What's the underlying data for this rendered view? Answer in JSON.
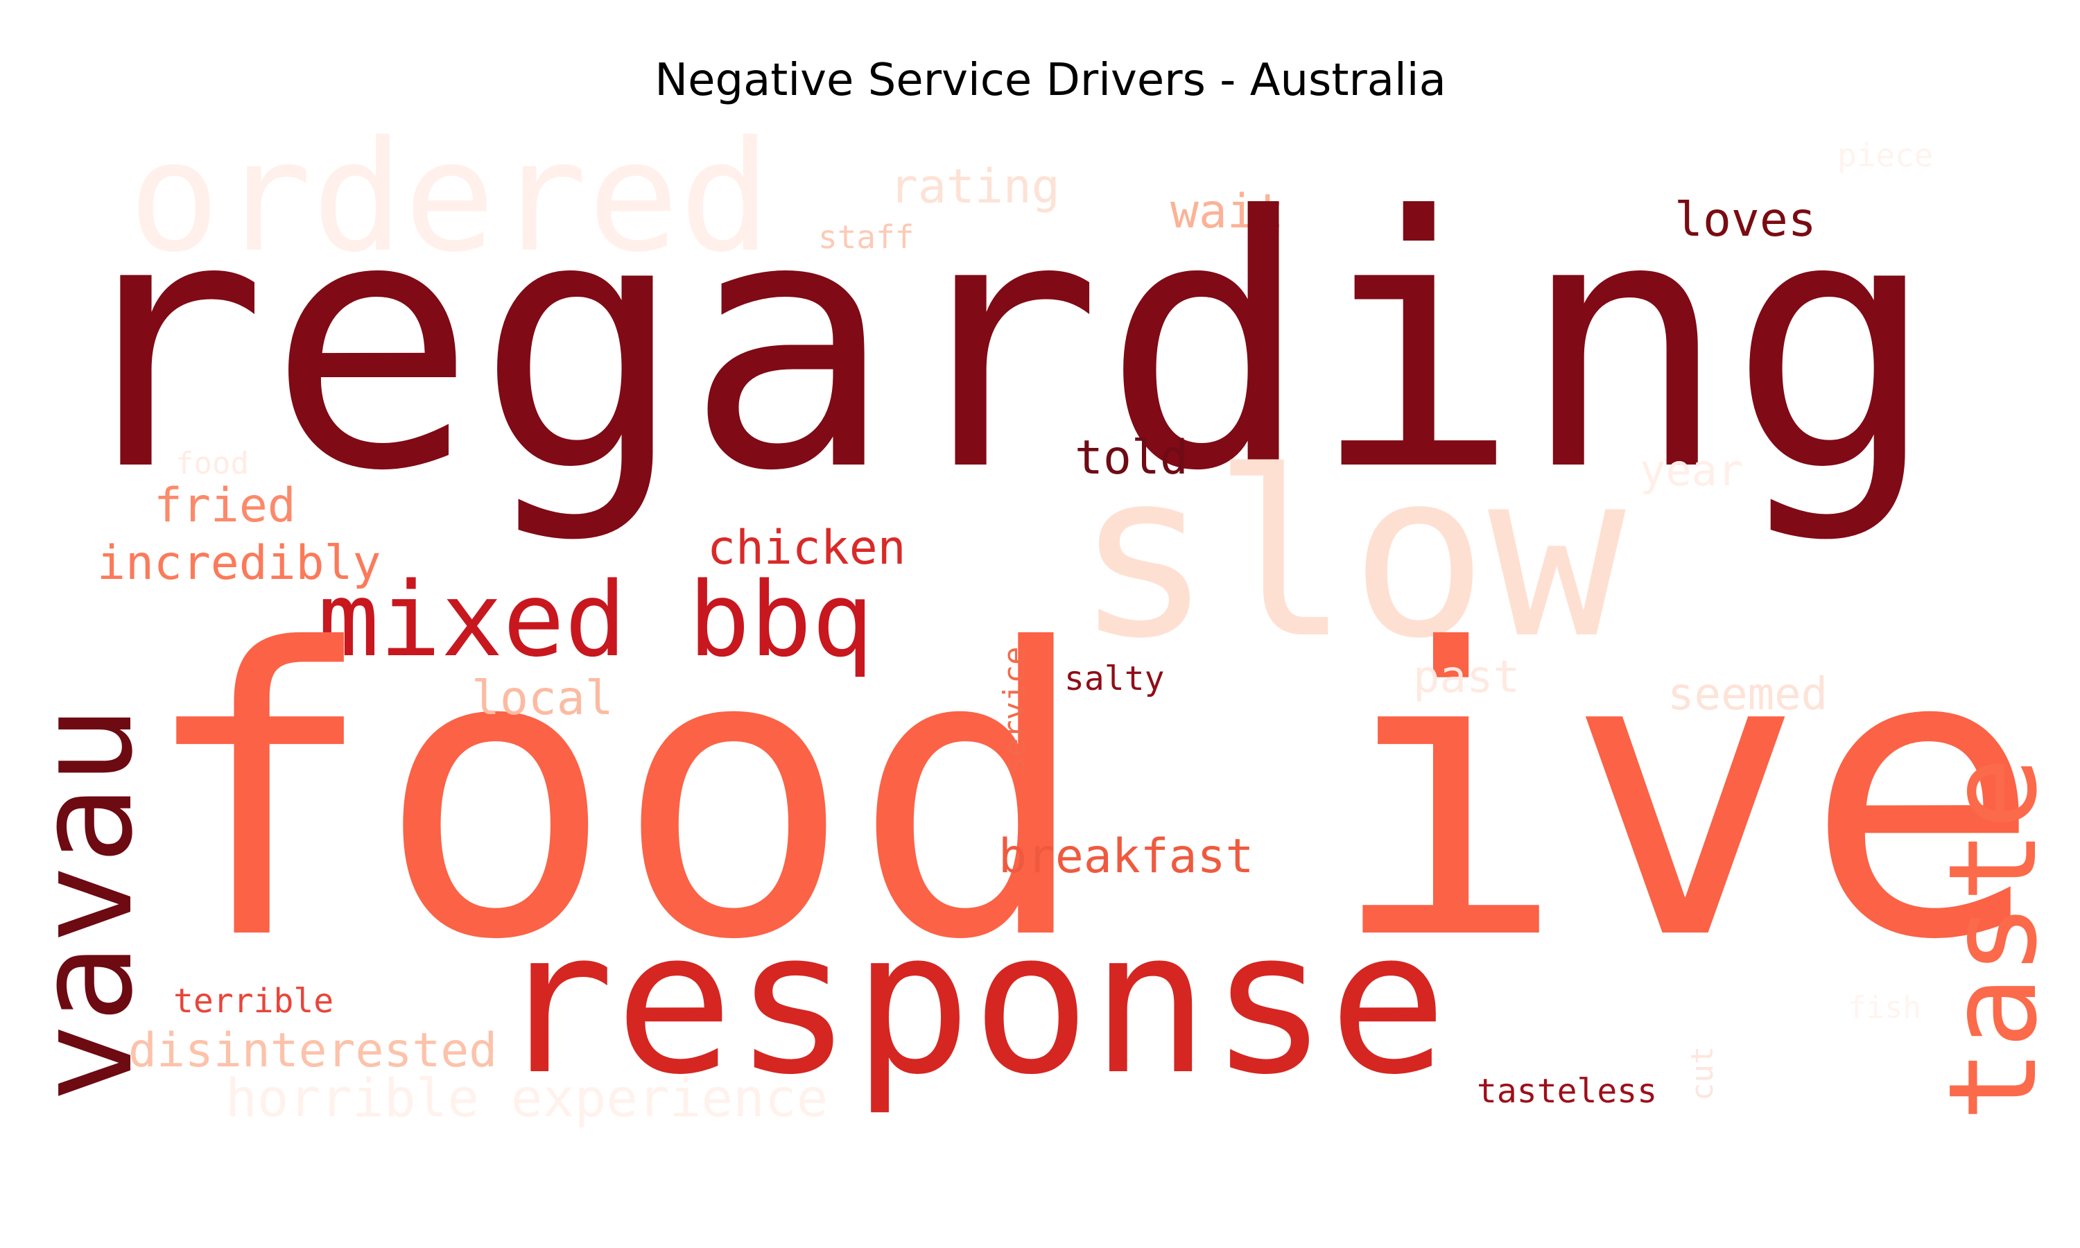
{
  "chart_data": {
    "type": "wordcloud",
    "title": "Negative Service Drivers - Australia",
    "colormap": "Reds",
    "words": [
      {
        "text": "ordered",
        "weight": 0.2,
        "color": "#fff0eb",
        "orientation": "horizontal"
      },
      {
        "text": "rating",
        "weight": 0.1,
        "color": "#fde2d6",
        "orientation": "horizontal"
      },
      {
        "text": "piece",
        "weight": 0.05,
        "color": "#fff3ee",
        "orientation": "horizontal"
      },
      {
        "text": "staff",
        "weight": 0.05,
        "color": "#fdcab5",
        "orientation": "horizontal"
      },
      {
        "text": "wait",
        "weight": 0.08,
        "color": "#fcb296",
        "orientation": "horizontal"
      },
      {
        "text": "loves",
        "weight": 0.08,
        "color": "#7a0b12",
        "orientation": "horizontal"
      },
      {
        "text": "regarding",
        "weight": 1.0,
        "color": "#800a15",
        "orientation": "horizontal"
      },
      {
        "text": "slow",
        "weight": 0.45,
        "color": "#fee0d2",
        "orientation": "horizontal"
      },
      {
        "text": "told",
        "weight": 0.08,
        "color": "#6e0b15",
        "orientation": "horizontal"
      },
      {
        "text": "food",
        "weight": 0.05,
        "color": "#ffece5",
        "orientation": "horizontal"
      },
      {
        "text": "year",
        "weight": 0.06,
        "color": "#ffefe8",
        "orientation": "horizontal"
      },
      {
        "text": "fried",
        "weight": 0.07,
        "color": "#fb8a6a",
        "orientation": "horizontal"
      },
      {
        "text": "incredibly",
        "weight": 0.08,
        "color": "#fb7a5a",
        "orientation": "horizontal"
      },
      {
        "text": "chicken",
        "weight": 0.08,
        "color": "#d92a28",
        "orientation": "horizontal"
      },
      {
        "text": "mixed bbq",
        "weight": 0.28,
        "color": "#c8171e",
        "orientation": "horizontal"
      },
      {
        "text": "vavau",
        "weight": 0.45,
        "color": "#6d0a12",
        "orientation": "vertical"
      },
      {
        "text": "food ive",
        "weight": 0.95,
        "color": "#fb6246",
        "orientation": "horizontal"
      },
      {
        "text": "salty",
        "weight": 0.05,
        "color": "#8f0d17",
        "orientation": "horizontal"
      },
      {
        "text": "past",
        "weight": 0.07,
        "color": "#feeae2",
        "orientation": "horizontal"
      },
      {
        "text": "seemed",
        "weight": 0.07,
        "color": "#fde3d8",
        "orientation": "horizontal"
      },
      {
        "text": "local",
        "weight": 0.08,
        "color": "#fcbba1",
        "orientation": "horizontal"
      },
      {
        "text": "service",
        "weight": 0.05,
        "color": "#f4694a",
        "orientation": "vertical"
      },
      {
        "text": "taste",
        "weight": 0.38,
        "color": "#fb6a4a",
        "orientation": "vertical"
      },
      {
        "text": "breakfast",
        "weight": 0.08,
        "color": "#ef5a3f",
        "orientation": "horizontal"
      },
      {
        "text": "response",
        "weight": 0.68,
        "color": "#d52621",
        "orientation": "horizontal"
      },
      {
        "text": "terrible",
        "weight": 0.05,
        "color": "#e8453a",
        "orientation": "horizontal"
      },
      {
        "text": "disinterested",
        "weight": 0.08,
        "color": "#fcc2aa",
        "orientation": "horizontal"
      },
      {
        "text": "horrible experience",
        "weight": 0.09,
        "color": "#fff2ed",
        "orientation": "horizontal"
      },
      {
        "text": "fish",
        "weight": 0.05,
        "color": "#fff4f0",
        "orientation": "horizontal"
      },
      {
        "text": "cut",
        "weight": 0.05,
        "color": "#fde6de",
        "orientation": "vertical"
      },
      {
        "text": "tasteless",
        "weight": 0.05,
        "color": "#9c0f1a",
        "orientation": "horizontal"
      }
    ]
  }
}
